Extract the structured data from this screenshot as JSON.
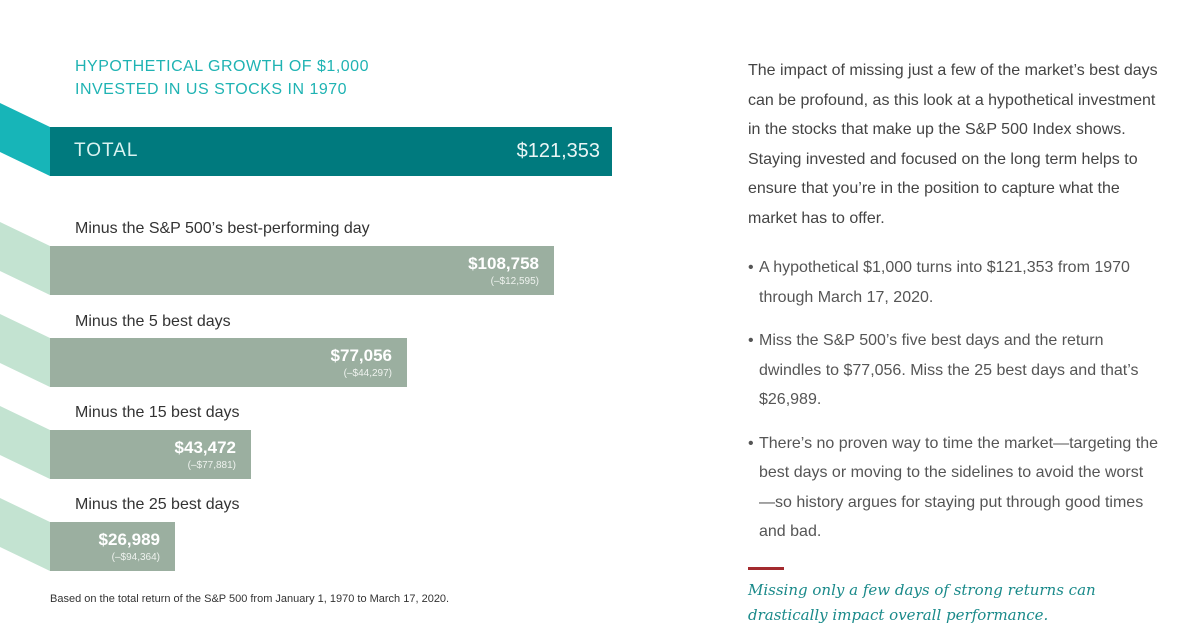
{
  "chart_data": {
    "type": "bar",
    "title": "HYPOTHETICAL GROWTH OF $1,000 INVESTED IN US STOCKS IN 1970",
    "title_lines": [
      "HYPOTHETICAL GROWTH OF $1,000",
      "INVESTED IN US STOCKS IN 1970"
    ],
    "orientation": "horizontal",
    "total": {
      "label": "TOTAL",
      "value": 121353,
      "value_label": "$121,353"
    },
    "categories": [
      "Minus the S&P 500’s best-performing day",
      "Minus the 5 best days",
      "Minus the 15 best days",
      "Minus the 25 best days"
    ],
    "values": [
      108758,
      77056,
      43472,
      26989
    ],
    "value_labels": [
      "$108,758",
      "$77,056",
      "$43,472",
      "$26,989"
    ],
    "difference_labels": [
      "(–$12,595)",
      "(–$44,297)",
      "(–$77,881)",
      "(–$94,364)"
    ],
    "footnote": "Based on the total return of the S&P 500 from January 1, 1970 to March 17, 2020.",
    "colors": {
      "title": "#1fb3b3",
      "total_bar": "#007a7e",
      "total_ribbon": "#17b5b8",
      "sub_bar": "#9bafa0",
      "sub_ribbon": "#c3e3d1"
    }
  },
  "text": {
    "intro": "The impact of missing just a few of the market’s best days can be profound, as this look at a hypothetical investment in the stocks that make up the S&P 500 Index shows. Staying invested and focused on the long term helps to ensure that you’re in the position to capture what the market has to offer.",
    "bullets": [
      "A hypothetical $1,000 turns into $121,353 from 1970 through March 17, 2020.",
      "Miss the S&P 500’s five best days and the return dwindles to $77,056. Miss the 25 best days and that’s $26,989.",
      "There’s no proven way to time the market—targeting the best days or moving to the sidelines to avoid the worst—so history argues for staying put through good times and bad."
    ],
    "bullet_char": "•",
    "pullquote": "Missing only a few days of strong returns can drastically impact overall performance.",
    "accent_rule_color": "#a32a2e"
  }
}
